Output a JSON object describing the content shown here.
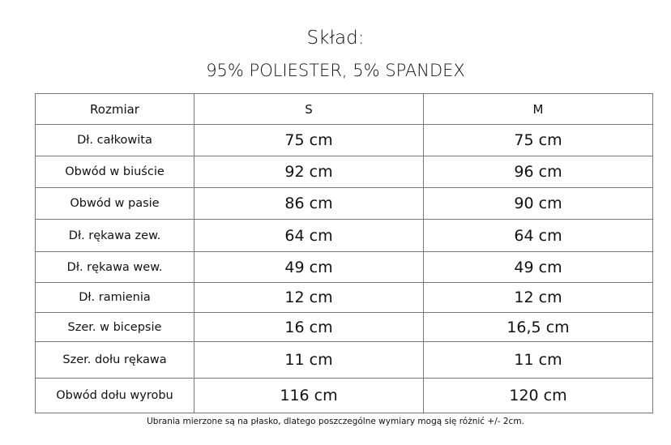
{
  "title": "Skład:",
  "composition": "95% POLIESTER, 5% SPANDEX",
  "table": {
    "headers": [
      "Rozmiar",
      "S",
      "M"
    ],
    "rows": [
      [
        "Dł. całkowita",
        "75 cm",
        "75 cm"
      ],
      [
        "Obwód w biuście",
        "92 cm",
        "96 cm"
      ],
      [
        "Obwód w pasie",
        "86 cm",
        "90 cm"
      ],
      [
        "Dł. rękawa zew.",
        "64 cm",
        "64 cm"
      ],
      [
        "Dł. rękawa wew.",
        "49 cm",
        "49 cm"
      ],
      [
        "Dł. ramienia",
        "12 cm",
        "12 cm"
      ],
      [
        "Szer. w bicepsie",
        "16 cm",
        "16,5 cm"
      ],
      [
        "Szer. dołu rękawa",
        "11 cm",
        "11 cm"
      ],
      [
        "Obwód dołu wyrobu",
        "116 cm",
        "120 cm"
      ]
    ]
  },
  "footnote": "Ubrania mierzone są na płasko, dlatego poszczególne wymiary mogą się różnić +/- 2cm."
}
